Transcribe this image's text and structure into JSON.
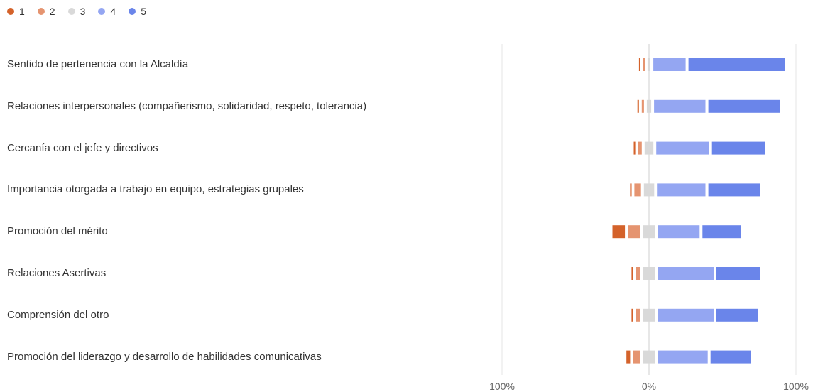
{
  "chart_data": {
    "type": "bar",
    "stacked": "diverging",
    "orientation": "horizontal",
    "legend_position": "top-left",
    "series": [
      {
        "name": "1",
        "color": "#d4622a"
      },
      {
        "name": "2",
        "color": "#e59470"
      },
      {
        "name": "3",
        "color": "#d9d9d9"
      },
      {
        "name": "4",
        "color": "#94a6f2"
      },
      {
        "name": "5",
        "color": "#6a85ea"
      }
    ],
    "categories": [
      "Sentido de pertenencia con la Alcaldía",
      "Relaciones interpersonales (compañerismo, solidaridad, respeto, tolerancia)",
      "Cercanía con el jefe y directivos",
      "Importancia otorgada a trabajo en equipo, estrategias grupales",
      "Promoción del mérito",
      "Relaciones Asertivas",
      "Comprensión del otro",
      "Promoción del liderazgo y desarrollo de habilidades comunicativas"
    ],
    "values": [
      [
        0.5,
        1.0,
        2.0,
        22.0,
        65.5
      ],
      [
        1.0,
        1.5,
        3.0,
        35.0,
        48.5
      ],
      [
        1.0,
        2.5,
        6.0,
        36.0,
        36.0
      ],
      [
        1.0,
        4.5,
        7.0,
        33.0,
        35.0
      ],
      [
        8.5,
        8.5,
        8.0,
        28.5,
        26.0
      ],
      [
        1.0,
        3.0,
        8.0,
        38.0,
        30.0
      ],
      [
        1.0,
        3.0,
        8.0,
        38.0,
        28.5
      ],
      [
        2.5,
        5.0,
        8.0,
        34.0,
        27.5
      ]
    ],
    "x_tick_labels": [
      "100%",
      "0%",
      "100%"
    ],
    "xlim": [
      -100,
      100
    ],
    "grid": true
  }
}
